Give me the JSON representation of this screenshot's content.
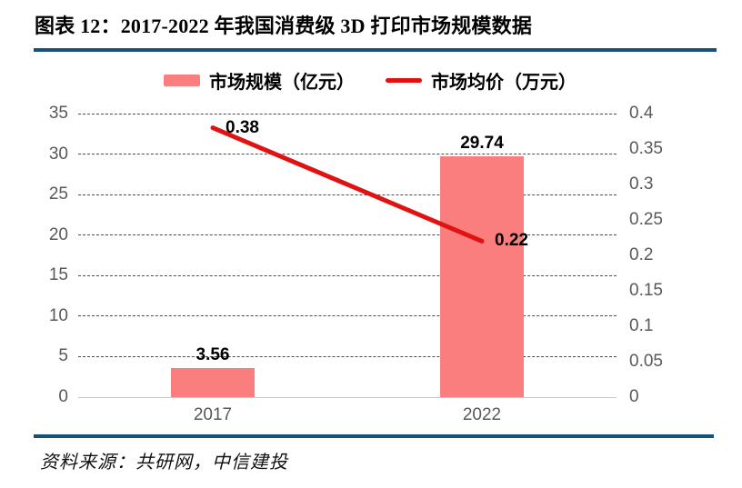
{
  "header": {
    "title": "图表 12：2017-2022 年我国消费级 3D 打印市场规模数据",
    "accent_color": "#15517B"
  },
  "footer": {
    "source": "资料来源：共研网，中信建投",
    "accent_color": "#15517B"
  },
  "chart_data": {
    "type": "bar",
    "subtype": "bar-with-line-dual-axis",
    "title": "2017-2022 年我国消费级 3D 打印市场规模数据",
    "categories": [
      "2017",
      "2022"
    ],
    "series": [
      {
        "name": "市场规模（亿元）",
        "type": "bar",
        "axis": "left",
        "color": "#FA7E7E",
        "values": [
          3.56,
          29.74
        ],
        "labels": [
          "3.56",
          "29.74"
        ]
      },
      {
        "name": "市场均价（万元）",
        "type": "line",
        "axis": "right",
        "color": "#E01212",
        "values": [
          0.38,
          0.22
        ],
        "labels": [
          "0.38",
          "0.22"
        ]
      }
    ],
    "left_axis": {
      "min": 0,
      "max": 35,
      "tick_labels": [
        "0",
        "5",
        "10",
        "15",
        "20",
        "25",
        "30",
        "35"
      ]
    },
    "right_axis": {
      "min": 0,
      "max": 0.4,
      "tick_labels": [
        "0",
        "0.05",
        "0.1",
        "0.15",
        "0.2",
        "0.25",
        "0.3",
        "0.35",
        "0.4"
      ]
    },
    "grid": "horizontal-dashed",
    "legend_position": "top",
    "tick_color": "#595959",
    "grid_color": "#4d4d4d",
    "baseline_color": "#c9c9c9"
  }
}
